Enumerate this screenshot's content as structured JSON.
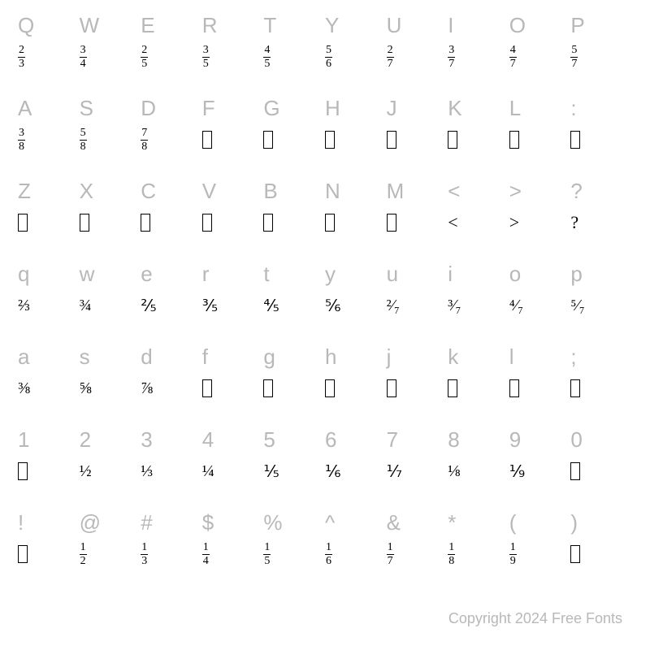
{
  "copyright": "Copyright 2024 Free Fonts",
  "colors": {
    "label": "#b8b8b8",
    "glyph": "#000000",
    "background": "#ffffff"
  },
  "rows": [
    {
      "keys": [
        "Q",
        "W",
        "E",
        "R",
        "T",
        "Y",
        "U",
        "I",
        "O",
        "P"
      ],
      "glyphs": [
        {
          "type": "stacked",
          "num": "2",
          "den": "3"
        },
        {
          "type": "stacked",
          "num": "3",
          "den": "4"
        },
        {
          "type": "stacked",
          "num": "2",
          "den": "5"
        },
        {
          "type": "stacked",
          "num": "3",
          "den": "5"
        },
        {
          "type": "stacked",
          "num": "4",
          "den": "5"
        },
        {
          "type": "stacked",
          "num": "5",
          "den": "6"
        },
        {
          "type": "stacked",
          "num": "2",
          "den": "7"
        },
        {
          "type": "stacked",
          "num": "3",
          "den": "7"
        },
        {
          "type": "stacked",
          "num": "4",
          "den": "7"
        },
        {
          "type": "stacked",
          "num": "5",
          "den": "7"
        }
      ]
    },
    {
      "keys": [
        "A",
        "S",
        "D",
        "F",
        "G",
        "H",
        "J",
        "K",
        "L",
        ":"
      ],
      "glyphs": [
        {
          "type": "stacked",
          "num": "3",
          "den": "8"
        },
        {
          "type": "stacked",
          "num": "5",
          "den": "8"
        },
        {
          "type": "stacked",
          "num": "7",
          "den": "8"
        },
        {
          "type": "box"
        },
        {
          "type": "box"
        },
        {
          "type": "box"
        },
        {
          "type": "box"
        },
        {
          "type": "box"
        },
        {
          "type": "box"
        },
        {
          "type": "box"
        }
      ]
    },
    {
      "keys": [
        "Z",
        "X",
        "C",
        "V",
        "B",
        "N",
        "M",
        "<",
        ">",
        "?"
      ],
      "glyphs": [
        {
          "type": "box"
        },
        {
          "type": "box"
        },
        {
          "type": "box"
        },
        {
          "type": "box"
        },
        {
          "type": "box"
        },
        {
          "type": "box"
        },
        {
          "type": "box"
        },
        {
          "type": "text",
          "value": "<"
        },
        {
          "type": "text",
          "value": ">"
        },
        {
          "type": "text",
          "value": "?"
        }
      ]
    },
    {
      "keys": [
        "q",
        "w",
        "e",
        "r",
        "t",
        "y",
        "u",
        "i",
        "o",
        "p"
      ],
      "glyphs": [
        {
          "type": "slash",
          "value": "⅔"
        },
        {
          "type": "slash",
          "value": "¾"
        },
        {
          "type": "slash",
          "value": "⅖"
        },
        {
          "type": "slash",
          "value": "⅗"
        },
        {
          "type": "slash",
          "value": "⅘"
        },
        {
          "type": "slash",
          "value": "⅚"
        },
        {
          "type": "slash",
          "value": "²⁄₇"
        },
        {
          "type": "slash",
          "value": "³⁄₇"
        },
        {
          "type": "slash",
          "value": "⁴⁄₇"
        },
        {
          "type": "slash",
          "value": "⁵⁄₇"
        }
      ]
    },
    {
      "keys": [
        "a",
        "s",
        "d",
        "f",
        "g",
        "h",
        "j",
        "k",
        "l",
        ";"
      ],
      "glyphs": [
        {
          "type": "slash",
          "value": "⅜"
        },
        {
          "type": "slash",
          "value": "⅝"
        },
        {
          "type": "slash",
          "value": "⅞"
        },
        {
          "type": "box"
        },
        {
          "type": "box"
        },
        {
          "type": "box"
        },
        {
          "type": "box"
        },
        {
          "type": "box"
        },
        {
          "type": "box"
        },
        {
          "type": "box"
        }
      ]
    },
    {
      "keys": [
        "1",
        "2",
        "3",
        "4",
        "5",
        "6",
        "7",
        "8",
        "9",
        "0"
      ],
      "glyphs": [
        {
          "type": "box"
        },
        {
          "type": "slash",
          "value": "½"
        },
        {
          "type": "slash",
          "value": "⅓"
        },
        {
          "type": "slash",
          "value": "¼"
        },
        {
          "type": "slash",
          "value": "⅕"
        },
        {
          "type": "slash",
          "value": "⅙"
        },
        {
          "type": "slash",
          "value": "⅐"
        },
        {
          "type": "slash",
          "value": "⅛"
        },
        {
          "type": "slash",
          "value": "⅑"
        },
        {
          "type": "box"
        }
      ]
    },
    {
      "keys": [
        "!",
        "@",
        "#",
        "$",
        "%",
        "^",
        "&",
        "*",
        "(",
        ")"
      ],
      "glyphs": [
        {
          "type": "box"
        },
        {
          "type": "stacked",
          "num": "1",
          "den": "2"
        },
        {
          "type": "stacked",
          "num": "1",
          "den": "3"
        },
        {
          "type": "stacked",
          "num": "1",
          "den": "4"
        },
        {
          "type": "stacked",
          "num": "1",
          "den": "5"
        },
        {
          "type": "stacked",
          "num": "1",
          "den": "6"
        },
        {
          "type": "stacked",
          "num": "1",
          "den": "7"
        },
        {
          "type": "stacked",
          "num": "1",
          "den": "8"
        },
        {
          "type": "stacked",
          "num": "1",
          "den": "9"
        },
        {
          "type": "box"
        }
      ]
    }
  ]
}
